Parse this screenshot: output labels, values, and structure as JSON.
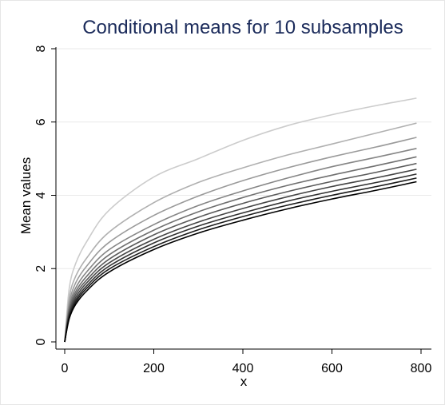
{
  "chart_data": {
    "type": "line",
    "title": "Conditional means for 10 subsamples",
    "xlabel": "x",
    "ylabel": "Mean values",
    "xlim": [
      0,
      800
    ],
    "ylim": [
      0,
      8
    ],
    "xticks": [
      0,
      200,
      400,
      600,
      800
    ],
    "yticks": [
      0,
      2,
      4,
      6,
      8
    ],
    "grid": "y",
    "legend": "none",
    "colors": [
      "#cccccc",
      "#b0b0b0",
      "#9a9a9a",
      "#858585",
      "#707070",
      "#5a5a5a",
      "#454545",
      "#303030",
      "#1a1a1a",
      "#000000"
    ],
    "x": [
      0,
      10,
      25,
      50,
      100,
      200,
      300,
      400,
      500,
      600,
      700,
      790
    ],
    "series": [
      {
        "values": [
          0,
          1.45,
          2.15,
          2.75,
          3.6,
          4.5,
          5.0,
          5.5,
          5.9,
          6.2,
          6.45,
          6.65
        ]
      },
      {
        "values": [
          0,
          1.2,
          1.8,
          2.3,
          3.0,
          3.8,
          4.35,
          4.75,
          5.1,
          5.4,
          5.7,
          5.97
        ]
      },
      {
        "values": [
          0,
          1.05,
          1.62,
          2.08,
          2.72,
          3.45,
          3.98,
          4.4,
          4.75,
          5.05,
          5.32,
          5.58
        ]
      },
      {
        "values": [
          0,
          0.95,
          1.48,
          1.92,
          2.52,
          3.2,
          3.72,
          4.12,
          4.47,
          4.78,
          5.04,
          5.28
        ]
      },
      {
        "values": [
          0,
          0.88,
          1.38,
          1.8,
          2.38,
          3.05,
          3.55,
          3.94,
          4.27,
          4.55,
          4.81,
          5.05
        ]
      },
      {
        "values": [
          0,
          0.82,
          1.3,
          1.7,
          2.26,
          2.92,
          3.4,
          3.78,
          4.1,
          4.38,
          4.63,
          4.87
        ]
      },
      {
        "values": [
          0,
          0.76,
          1.22,
          1.62,
          2.16,
          2.8,
          3.27,
          3.64,
          3.96,
          4.24,
          4.48,
          4.71
        ]
      },
      {
        "values": [
          0,
          0.71,
          1.15,
          1.54,
          2.07,
          2.7,
          3.16,
          3.52,
          3.84,
          4.11,
          4.35,
          4.58
        ]
      },
      {
        "values": [
          0,
          0.67,
          1.09,
          1.47,
          1.99,
          2.6,
          3.06,
          3.42,
          3.73,
          4.0,
          4.24,
          4.47
        ]
      },
      {
        "values": [
          0,
          0.63,
          1.03,
          1.4,
          1.91,
          2.52,
          2.97,
          3.32,
          3.63,
          3.9,
          4.14,
          4.37
        ]
      }
    ]
  }
}
